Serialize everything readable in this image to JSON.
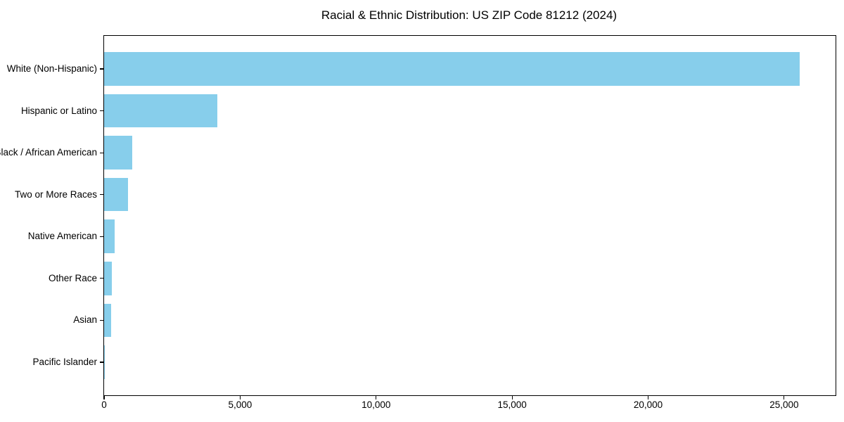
{
  "chart_data": {
    "type": "bar",
    "orientation": "horizontal",
    "title": "Racial & Ethnic Distribution: US ZIP Code 81212 (2024)",
    "categories": [
      "White (Non-Hispanic)",
      "Hispanic or Latino",
      "Black / African American",
      "Two or More Races",
      "Native American",
      "Other Race",
      "Asian",
      "Pacific Islander"
    ],
    "values": [
      25570,
      4160,
      1030,
      870,
      385,
      290,
      265,
      10
    ],
    "xlabel": "",
    "ylabel": "",
    "xlim": [
      0,
      26890
    ],
    "x_ticks": [
      0,
      5000,
      10000,
      15000,
      20000,
      25000
    ],
    "x_tick_labels": [
      "0",
      "5,000",
      "10,000",
      "15,000",
      "20,000",
      "25,000"
    ],
    "bar_color": "#87CEEB",
    "axis_color": "#000000",
    "text_color": "#000000",
    "background": "#FFFFFF",
    "grid": false,
    "legend": null
  }
}
